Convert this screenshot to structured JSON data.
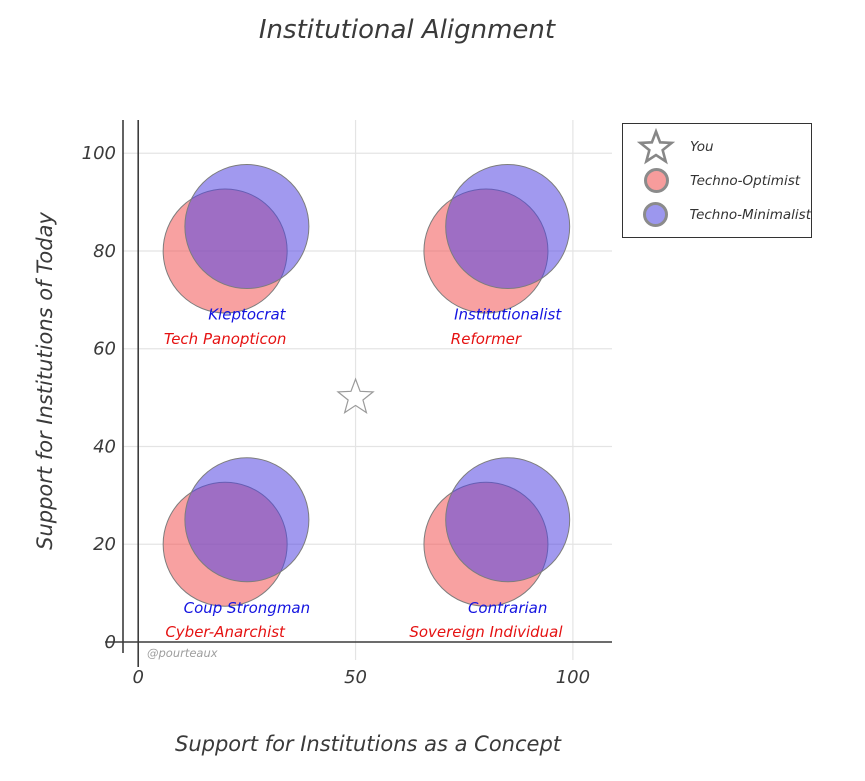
{
  "chart_data": {
    "type": "scatter",
    "title": "Institutional Alignment",
    "xlabel": "Support for Institutions as a Concept",
    "ylabel": "Support for Institutions of Today",
    "x_ticks": [
      0,
      50,
      100
    ],
    "y_ticks": [
      0,
      20,
      40,
      60,
      80,
      100
    ],
    "x_range": [
      -3.5,
      109
    ],
    "y_range": [
      0,
      106.8
    ],
    "grid": true,
    "legend_position": "outside-top-right",
    "marker_radius_px": 62,
    "watermark": "@pourteaux",
    "you": {
      "label": "You",
      "x": 50,
      "y": 50,
      "marker": "star-open"
    },
    "series": [
      {
        "name": "Techno-Optimist",
        "fill": "rgba(242,84,84,0.55)",
        "stroke": "#7d7d7d",
        "label_color": "#e51212",
        "legend_swatch": "#f79c9c",
        "points": [
          {
            "x": 20,
            "y": 80,
            "label": "Tech Panopticon",
            "label_x": 20,
            "label_y": 62
          },
          {
            "x": 80,
            "y": 80,
            "label": "Reformer",
            "label_x": 80,
            "label_y": 62
          },
          {
            "x": 20,
            "y": 20,
            "label": "Cyber-Anarchist",
            "label_x": 20,
            "label_y": 2
          },
          {
            "x": 80,
            "y": 20,
            "label": "Sovereign Individual",
            "label_x": 80,
            "label_y": 2
          }
        ]
      },
      {
        "name": "Techno-Minimalist",
        "fill": "rgba(84,70,226,0.55)",
        "stroke": "#7d7d7d",
        "label_color": "#1414e0",
        "legend_swatch": "#9c97ee",
        "points": [
          {
            "x": 25,
            "y": 85,
            "label": "Kleptocrat",
            "label_x": 25,
            "label_y": 67
          },
          {
            "x": 85,
            "y": 85,
            "label": "Institutionalist",
            "label_x": 85,
            "label_y": 67
          },
          {
            "x": 25,
            "y": 25,
            "label": "Coup Strongman",
            "label_x": 25,
            "label_y": 7
          },
          {
            "x": 85,
            "y": 25,
            "label": "Contrarian",
            "label_x": 85,
            "label_y": 7
          }
        ]
      }
    ],
    "legend": {
      "items": [
        {
          "marker": "star",
          "label": "You"
        },
        {
          "marker": "circle",
          "label": "Techno-Optimist"
        },
        {
          "marker": "circle",
          "label": "Techno-Minimalist"
        }
      ]
    },
    "colors": {
      "axis_line": "#3c3c3c",
      "grid_line": "#e4e4e4",
      "text": "#3a3a3a"
    }
  }
}
